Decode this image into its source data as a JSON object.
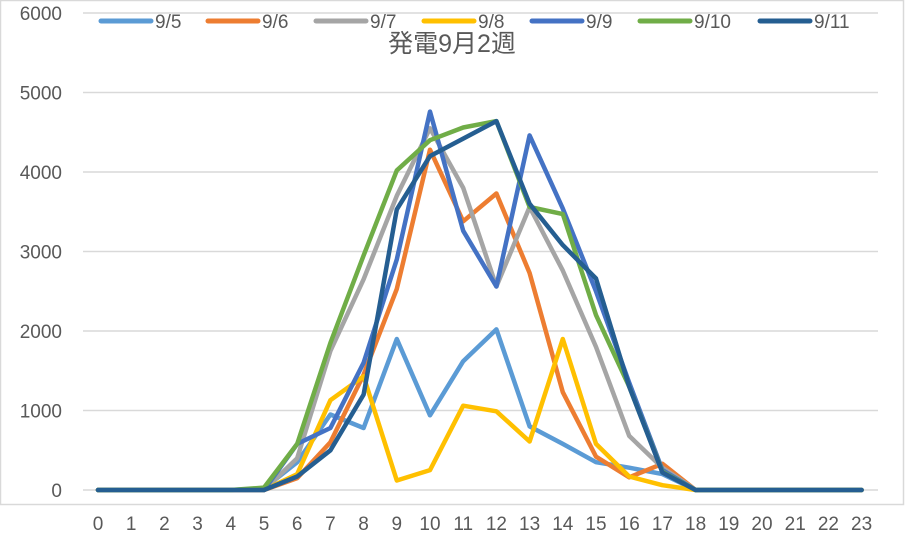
{
  "chart_data": {
    "type": "line",
    "title": "発電9月2週",
    "xlabel": "",
    "ylabel": "",
    "x": [
      0,
      1,
      2,
      3,
      4,
      5,
      6,
      7,
      8,
      9,
      10,
      11,
      12,
      13,
      14,
      15,
      16,
      17,
      18,
      19,
      20,
      21,
      22,
      23
    ],
    "ylim": [
      0,
      6000
    ],
    "yticks": [
      0,
      1000,
      2000,
      3000,
      4000,
      5000,
      6000
    ],
    "grid": true,
    "legend_position": "top",
    "series": [
      {
        "name": "9/5",
        "color": "#5B9BD5",
        "values": [
          0,
          0,
          0,
          0,
          0,
          20,
          350,
          950,
          780,
          1900,
          940,
          1620,
          2020,
          800,
          580,
          350,
          280,
          200,
          0,
          0,
          0,
          0,
          0,
          0
        ]
      },
      {
        "name": "9/6",
        "color": "#ED7D31",
        "values": [
          0,
          0,
          0,
          0,
          0,
          0,
          150,
          600,
          1450,
          2530,
          4280,
          3380,
          3730,
          2730,
          1230,
          420,
          160,
          330,
          0,
          0,
          0,
          0,
          0,
          0
        ]
      },
      {
        "name": "9/7",
        "color": "#A5A5A5",
        "values": [
          0,
          0,
          0,
          0,
          0,
          0,
          400,
          1750,
          2650,
          3700,
          4550,
          3800,
          2560,
          3560,
          2760,
          1800,
          680,
          280,
          0,
          0,
          0,
          0,
          0,
          0
        ]
      },
      {
        "name": "9/8",
        "color": "#FFC000",
        "values": [
          0,
          0,
          0,
          0,
          0,
          0,
          200,
          1130,
          1430,
          120,
          250,
          1060,
          990,
          610,
          1900,
          580,
          170,
          60,
          0,
          0,
          0,
          0,
          0,
          0
        ]
      },
      {
        "name": "9/9",
        "color": "#4472C4",
        "values": [
          0,
          0,
          0,
          0,
          0,
          0,
          580,
          780,
          1600,
          2900,
          4760,
          3260,
          2560,
          4460,
          3540,
          2500,
          1350,
          250,
          0,
          0,
          0,
          0,
          0,
          0
        ]
      },
      {
        "name": "9/10",
        "color": "#70AD47",
        "values": [
          0,
          0,
          0,
          0,
          0,
          30,
          580,
          1850,
          2950,
          4020,
          4400,
          4560,
          4640,
          3560,
          3470,
          2200,
          1300,
          230,
          0,
          0,
          0,
          0,
          0,
          0
        ]
      },
      {
        "name": "9/11",
        "color": "#255E91",
        "values": [
          0,
          0,
          0,
          0,
          0,
          0,
          170,
          500,
          1200,
          3530,
          4200,
          4420,
          4640,
          3600,
          3080,
          2660,
          1300,
          220,
          0,
          0,
          0,
          0,
          0,
          0
        ]
      }
    ]
  }
}
